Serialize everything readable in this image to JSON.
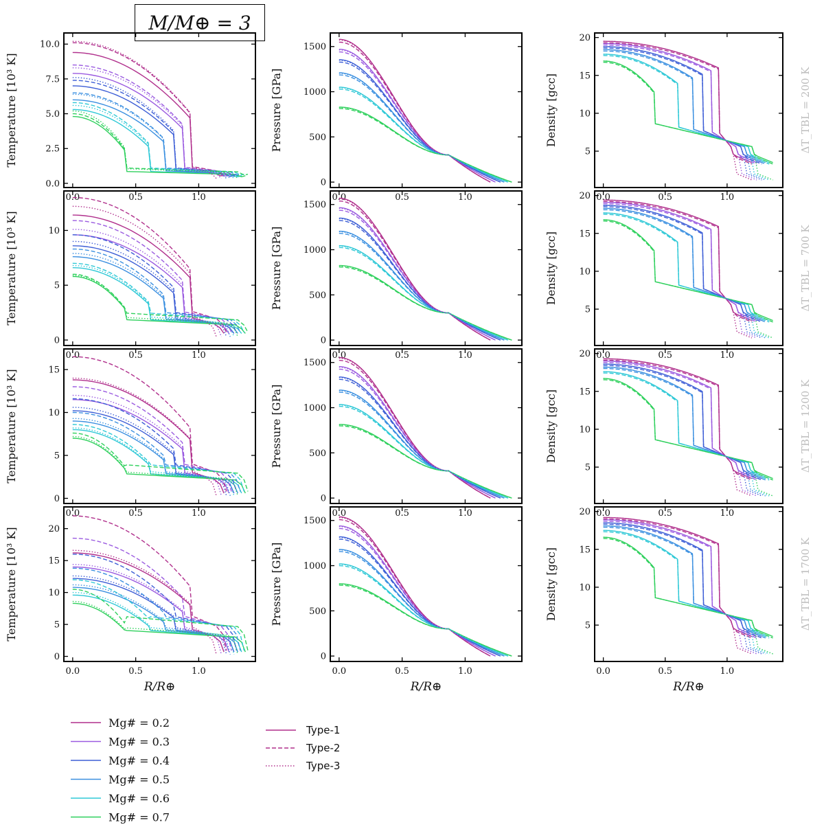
{
  "figure_title": "M/M⊕ = 3",
  "x_axis_label": "R/R⊕",
  "row_labels": [
    "ΔT_TBL = 200 K",
    "ΔT_TBL = 700 K",
    "ΔT_TBL = 1200 K",
    "ΔT_TBL = 1700 K"
  ],
  "column_ylabels": [
    "Temperature [10³ K]",
    "Pressure [GPa]",
    "Density [gcc]"
  ],
  "legend_mg": {
    "entries": [
      {
        "label": "Mg# = 0.2",
        "color": "#b02f8c"
      },
      {
        "label": "Mg# = 0.3",
        "color": "#9a5ae0"
      },
      {
        "label": "Mg# = 0.4",
        "color": "#3d5ed6"
      },
      {
        "label": "Mg# = 0.5",
        "color": "#3a8fe0"
      },
      {
        "label": "Mg# = 0.6",
        "color": "#2ec8d6"
      },
      {
        "label": "Mg# = 0.7",
        "color": "#2ed05c"
      }
    ]
  },
  "legend_type": {
    "entries": [
      {
        "label": "Type-1",
        "style": "solid"
      },
      {
        "label": "Type-2",
        "style": "dashed"
      },
      {
        "label": "Type-3",
        "style": "dotted"
      }
    ],
    "color": "#b02f8c"
  },
  "chart_data": [
    {
      "type": "line",
      "row": 0,
      "col": 0,
      "variable": "temperature",
      "ylabel": "Temperature [10³ K]",
      "xlabel": "",
      "xlim": [
        -0.07,
        1.45
      ],
      "ylim": [
        -0.3,
        10.8
      ],
      "xticks": [
        0,
        0.5,
        1.0
      ],
      "xtick_labels": [
        "0.0",
        "0.5",
        "1.0"
      ],
      "yticks": [
        0,
        2.5,
        5,
        7.5,
        10
      ],
      "ytick_labels": [
        "0.0",
        "2.5",
        "5.0",
        "7.5",
        "10.0"
      ],
      "curves": {
        "core_radii": [
          0.93,
          0.87,
          0.8,
          0.72,
          0.6,
          0.41
        ],
        "planet_radii": [
          1.2,
          1.24,
          1.28,
          1.31,
          1.34,
          1.37
        ],
        "center": {
          "solid": [
            9.4,
            7.9,
            7.0,
            6.0,
            5.3,
            4.8
          ],
          "dashed": [
            10.1,
            8.5,
            7.4,
            6.5,
            5.8,
            5.0
          ],
          "dotted": [
            10.2,
            8.3,
            7.6,
            6.4,
            5.6,
            5.2
          ]
        },
        "cmb_drop": {
          "solid": [
            1.0,
            0.95,
            0.9,
            0.9,
            0.85,
            0.85
          ],
          "dashed": [
            1.2,
            1.15,
            1.1,
            1.1,
            1.1,
            1.1
          ],
          "dotted": [
            1.15,
            1.1,
            1.1,
            1.05,
            1.05,
            1.05
          ]
        },
        "surface": {
          "solid": 0.55,
          "dashed": 0.65,
          "dotted": 0.35
        }
      }
    },
    {
      "type": "line",
      "row": 0,
      "col": 1,
      "variable": "pressure",
      "ylabel": "Pressure [GPa]",
      "xlabel": "",
      "xlim": [
        -0.07,
        1.45
      ],
      "ylim": [
        -60,
        1650
      ],
      "xticks": [
        0,
        0.5,
        1.0
      ],
      "xtick_labels": [
        "0.0",
        "0.5",
        "1.0"
      ],
      "yticks": [
        0,
        500,
        1000,
        1500
      ],
      "ytick_labels": [
        "0",
        "500",
        "1000",
        "1500"
      ],
      "curves": {
        "center": [
          1580,
          1470,
          1355,
          1210,
          1050,
          830
        ],
        "planet_radii": [
          1.2,
          1.24,
          1.28,
          1.31,
          1.34,
          1.37
        ],
        "crossover": [
          0.87,
          300
        ]
      }
    },
    {
      "type": "line",
      "row": 0,
      "col": 2,
      "variable": "density",
      "ylabel": "Density [gcc]",
      "xlabel": "",
      "xlim": [
        -0.07,
        1.45
      ],
      "ylim": [
        0.2,
        20.6
      ],
      "xticks": [
        0,
        0.5,
        1.0
      ],
      "xtick_labels": [
        "0.0",
        "0.5",
        "1.0"
      ],
      "yticks": [
        5,
        10,
        15,
        20
      ],
      "ytick_labels": [
        "5",
        "10",
        "15",
        "20"
      ],
      "curves": {
        "center": [
          19.5,
          19.2,
          18.8,
          18.4,
          17.8,
          16.9
        ],
        "core_radii": [
          0.93,
          0.87,
          0.8,
          0.72,
          0.6,
          0.41
        ],
        "surface": {
          "solid": 3.5,
          "dashed": 3.3,
          "dotted": 1.2
        }
      }
    },
    {
      "type": "line",
      "row": 1,
      "col": 0,
      "variable": "temperature",
      "ylabel": "Temperature [10³ K]",
      "xlabel": "",
      "xlim": [
        -0.07,
        1.45
      ],
      "ylim": [
        -0.5,
        13.6
      ],
      "xticks": [
        0,
        0.5,
        1.0
      ],
      "xtick_labels": [
        "0.0",
        "0.5",
        "1.0"
      ],
      "yticks": [
        0,
        5,
        10
      ],
      "ytick_labels": [
        "0",
        "5",
        "10"
      ],
      "curves": {
        "center": {
          "solid": [
            11.4,
            9.6,
            8.6,
            7.6,
            6.6,
            5.8
          ],
          "dashed": [
            13.0,
            10.9,
            9.6,
            8.3,
            7.0,
            6.0
          ],
          "dotted": [
            12.2,
            10.1,
            9.0,
            7.9,
            6.8,
            5.9
          ]
        },
        "cmb_drop": {
          "solid": [
            2.0,
            1.95,
            1.9,
            1.9,
            1.85,
            1.85
          ],
          "dashed": [
            2.6,
            2.55,
            2.5,
            2.5,
            2.45,
            2.45
          ],
          "dotted": [
            2.2,
            2.15,
            2.1,
            2.1,
            2.1,
            2.05
          ]
        },
        "surface": {
          "solid": 0.6,
          "dashed": 0.7,
          "dotted": 0.3
        }
      }
    },
    {
      "type": "line",
      "row": 1,
      "col": 1,
      "variable": "pressure",
      "ylabel": "Pressure [GPa]",
      "xlabel": "",
      "xlim": [
        -0.07,
        1.45
      ],
      "ylim": [
        -60,
        1650
      ],
      "xticks": [
        0,
        0.5,
        1.0
      ],
      "xtick_labels": [
        "0.0",
        "0.5",
        "1.0"
      ],
      "yticks": [
        0,
        500,
        1000,
        1500
      ],
      "ytick_labels": [
        "0",
        "500",
        "1000",
        "1500"
      ],
      "curves": {
        "center": [
          1570,
          1465,
          1350,
          1205,
          1045,
          825
        ]
      }
    },
    {
      "type": "line",
      "row": 1,
      "col": 2,
      "variable": "density",
      "ylabel": "Density [gcc]",
      "xlabel": "",
      "xlim": [
        -0.07,
        1.45
      ],
      "ylim": [
        0.2,
        20.6
      ],
      "xticks": [
        0,
        0.5,
        1.0
      ],
      "xtick_labels": [
        "0.0",
        "0.5",
        "1.0"
      ],
      "yticks": [
        5,
        10,
        15,
        20
      ],
      "ytick_labels": [
        "5",
        "10",
        "15",
        "20"
      ],
      "curves": {
        "center": [
          19.4,
          19.1,
          18.7,
          18.3,
          17.7,
          16.8
        ]
      }
    },
    {
      "type": "line",
      "row": 2,
      "col": 0,
      "variable": "temperature",
      "ylabel": "Temperature [10³ K]",
      "xlabel": "",
      "xlim": [
        -0.07,
        1.45
      ],
      "ylim": [
        -0.6,
        17.4
      ],
      "xticks": [
        0,
        0.5,
        1.0
      ],
      "xtick_labels": [
        "0.0",
        "0.5",
        "1.0"
      ],
      "yticks": [
        0,
        5,
        10,
        15
      ],
      "ytick_labels": [
        "0",
        "5",
        "10",
        "15"
      ],
      "curves": {
        "center": {
          "solid": [
            13.8,
            11.5,
            10.2,
            9.0,
            8.0,
            7.0
          ],
          "dashed": [
            16.5,
            13.0,
            11.6,
            10.0,
            8.6,
            7.6
          ],
          "dotted": [
            14.0,
            12.0,
            10.6,
            9.3,
            8.2,
            7.2
          ]
        },
        "cmb_drop": {
          "solid": [
            3.0,
            2.95,
            2.9,
            2.9,
            2.85,
            2.85
          ],
          "dashed": [
            4.0,
            3.95,
            3.9,
            3.9,
            3.9,
            3.9
          ],
          "dotted": [
            3.2,
            3.15,
            3.1,
            3.1,
            3.1,
            3.05
          ]
        },
        "surface": {
          "solid": 0.6,
          "dashed": 0.8,
          "dotted": 0.3
        }
      }
    },
    {
      "type": "line",
      "row": 2,
      "col": 1,
      "variable": "pressure",
      "ylabel": "Pressure [GPa]",
      "xlabel": "",
      "xlim": [
        -0.07,
        1.45
      ],
      "ylim": [
        -60,
        1650
      ],
      "xticks": [
        0,
        0.5,
        1.0
      ],
      "xtick_labels": [
        "0.0",
        "0.5",
        "1.0"
      ],
      "yticks": [
        0,
        500,
        1000,
        1500
      ],
      "ytick_labels": [
        "0",
        "500",
        "1000",
        "1500"
      ],
      "curves": {
        "center": [
          1555,
          1455,
          1340,
          1195,
          1035,
          815
        ]
      }
    },
    {
      "type": "line",
      "row": 2,
      "col": 2,
      "variable": "density",
      "ylabel": "Density [gcc]",
      "xlabel": "",
      "xlim": [
        -0.07,
        1.45
      ],
      "ylim": [
        0.2,
        20.6
      ],
      "xticks": [
        0,
        0.5,
        1.0
      ],
      "xtick_labels": [
        "0.0",
        "0.5",
        "1.0"
      ],
      "yticks": [
        5,
        10,
        15,
        20
      ],
      "ytick_labels": [
        "5",
        "10",
        "15",
        "20"
      ],
      "curves": {
        "center": [
          19.3,
          19.0,
          18.6,
          18.2,
          17.6,
          16.7
        ]
      }
    },
    {
      "type": "line",
      "row": 3,
      "col": 0,
      "variable": "temperature",
      "ylabel": "Temperature [10³ K]",
      "xlabel": "R/R⊕",
      "xlim": [
        -0.07,
        1.45
      ],
      "ylim": [
        -0.8,
        23.4
      ],
      "xticks": [
        0,
        0.5,
        1.0
      ],
      "xtick_labels": [
        "0.0",
        "0.5",
        "1.0"
      ],
      "yticks": [
        0,
        5,
        10,
        15,
        20
      ],
      "ytick_labels": [
        "0",
        "5",
        "10",
        "15",
        "20"
      ],
      "curves": {
        "center": {
          "solid": [
            16.2,
            14.0,
            12.2,
            10.8,
            9.6,
            8.3
          ],
          "dashed": [
            22.0,
            18.5,
            16.0,
            13.8,
            12.0,
            10.5
          ],
          "dotted": [
            16.6,
            14.4,
            12.6,
            11.2,
            10.0,
            8.6
          ]
        },
        "cmb_drop": {
          "solid": [
            4.2,
            4.15,
            4.1,
            4.1,
            4.05,
            4.05
          ],
          "dashed": [
            6.3,
            6.25,
            6.2,
            6.2,
            6.2,
            6.2
          ],
          "dotted": [
            4.6,
            4.55,
            4.5,
            4.5,
            4.5,
            4.45
          ]
        },
        "surface": {
          "solid": 0.7,
          "dashed": 0.9,
          "dotted": 0.3
        }
      }
    },
    {
      "type": "line",
      "row": 3,
      "col": 1,
      "variable": "pressure",
      "ylabel": "Pressure [GPa]",
      "xlabel": "R/R⊕",
      "xlim": [
        -0.07,
        1.45
      ],
      "ylim": [
        -60,
        1650
      ],
      "xticks": [
        0,
        0.5,
        1.0
      ],
      "xtick_labels": [
        "0.0",
        "0.5",
        "1.0"
      ],
      "yticks": [
        0,
        500,
        1000,
        1500
      ],
      "ytick_labels": [
        "0",
        "500",
        "1000",
        "1500"
      ],
      "curves": {
        "center": [
          1540,
          1440,
          1320,
          1180,
          1020,
          800
        ]
      }
    },
    {
      "type": "line",
      "row": 3,
      "col": 2,
      "variable": "density",
      "ylabel": "Density [gcc]",
      "xlabel": "R/R⊕",
      "xlim": [
        -0.07,
        1.45
      ],
      "ylim": [
        0.2,
        20.6
      ],
      "xticks": [
        0,
        0.5,
        1.0
      ],
      "xtick_labels": [
        "0.0",
        "0.5",
        "1.0"
      ],
      "yticks": [
        5,
        10,
        15,
        20
      ],
      "ytick_labels": [
        "5",
        "10",
        "15",
        "20"
      ],
      "curves": {
        "center": [
          19.2,
          18.9,
          18.5,
          18.1,
          17.5,
          16.6
        ]
      }
    }
  ]
}
